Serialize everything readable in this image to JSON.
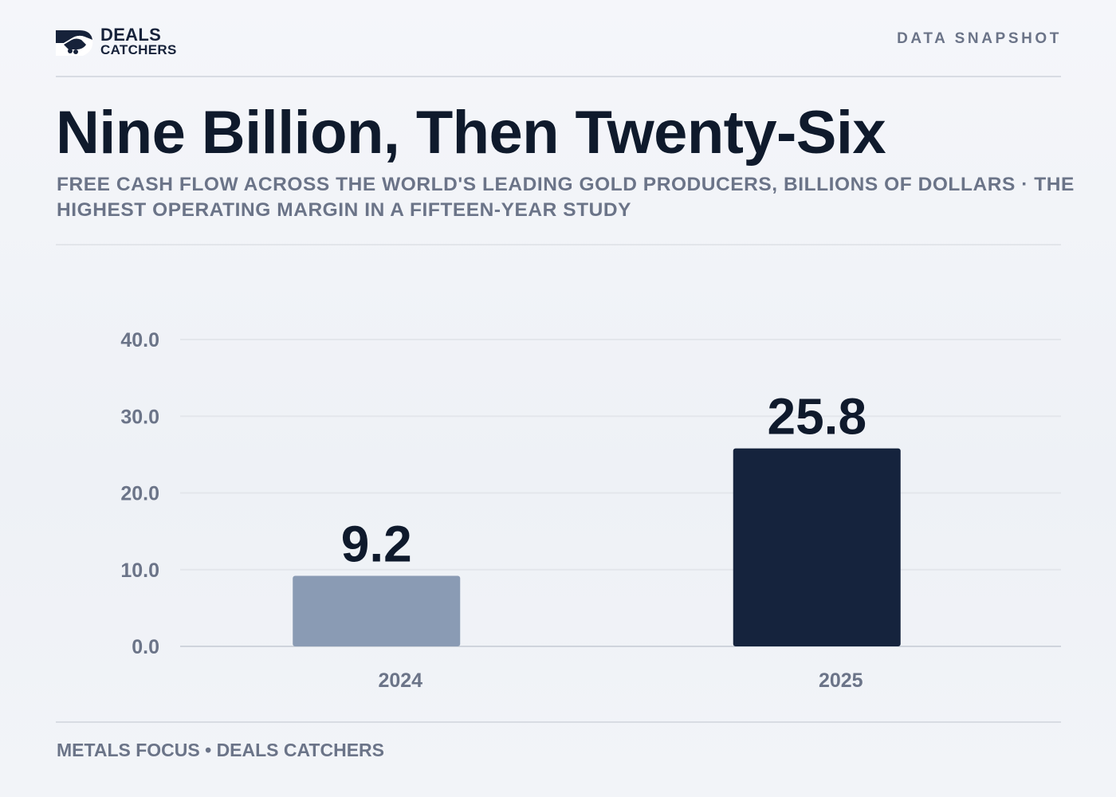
{
  "header": {
    "logo_line1": "DEALS",
    "logo_line2": "CATCHERS",
    "tag": "DATA SNAPSHOT"
  },
  "title": "Nine Billion, Then Twenty-Six",
  "subtitle": "FREE CASH FLOW ACROSS THE WORLD'S LEADING GOLD PRODUCERS, BILLIONS OF DOLLARS · THE HIGHEST OPERATING MARGIN IN A FIFTEEN-YEAR STUDY",
  "source": "METALS FOCUS • DEALS CATCHERS",
  "colors": {
    "bar_previous": "#8a9bb4",
    "bar_current": "#15233d",
    "text_dark": "#0f1a2c",
    "text_muted": "#6b7488",
    "grid": "#e3e6eb"
  },
  "icons": {
    "logo": "handshake-logo-icon"
  },
  "chart_data": {
    "type": "bar",
    "title": "Nine Billion, Then Twenty-Six",
    "xlabel": "",
    "ylabel": "",
    "categories": [
      "2024",
      "2025"
    ],
    "values": [
      9.2,
      25.8
    ],
    "data_labels": [
      "9.2",
      "25.8"
    ],
    "ylim": [
      0,
      40
    ],
    "yticks": [
      0,
      10,
      20,
      30,
      40
    ],
    "ytick_labels": [
      "0.0",
      "10.0",
      "20.0",
      "30.0",
      "40.0"
    ],
    "grid": true,
    "legend": "none"
  }
}
